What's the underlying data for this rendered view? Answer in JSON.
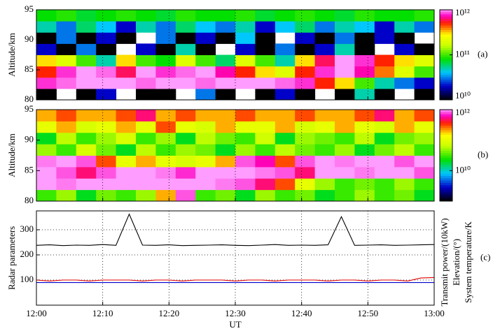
{
  "chart_data": [
    {
      "type": "heatmap",
      "panel_label": "(a)",
      "y_label": "Altitude/km",
      "ylim": [
        80,
        95
      ],
      "yticks": [
        80,
        85,
        90,
        95
      ],
      "rows": [
        [
          10000000000.0,
          null,
          10000000000.0,
          20000000000.0,
          null,
          10000000000.0,
          10000000000.0,
          null,
          30000000000.0,
          10000000000.0,
          null,
          10000000000.0,
          20000000000.0,
          10000000000.0,
          null,
          10000000000.0,
          50000000000.0,
          10000000000.0,
          null,
          10000000000.0
        ],
        [
          800000000000.0,
          900000000000.0,
          1000000000000.0,
          1000000000000.0,
          1000000000000.0,
          900000000000.0,
          1000000000000.0,
          1000000000000.0,
          900000000000.0,
          1000000000000.0,
          1000000000000.0,
          1000000000000.0,
          900000000000.0,
          800000000000.0,
          500000000000.0,
          300000000000.0,
          100000000000.0,
          50000000000.0,
          30000000000.0,
          20000000000.0
        ],
        [
          500000000000.0,
          800000000000.0,
          1000000000000.0,
          900000000000.0,
          600000000000.0,
          1000000000000.0,
          800000000000.0,
          900000000000.0,
          1000000000000.0,
          700000000000.0,
          500000000000.0,
          300000000000.0,
          200000000000.0,
          500000000000.0,
          800000000000.0,
          1000000000000.0,
          700000000000.0,
          400000000000.0,
          200000000000.0,
          100000000000.0
        ],
        [
          300000000000.0,
          200000000000.0,
          100000000000.0,
          50000000000.0,
          300000000000.0,
          100000000000.0,
          80000000000.0,
          200000000000.0,
          100000000000.0,
          60000000000.0,
          200000000000.0,
          100000000000.0,
          50000000000.0,
          300000000000.0,
          600000000000.0,
          1000000000000.0,
          800000000000.0,
          500000000000.0,
          300000000000.0,
          200000000000.0
        ],
        [
          20000000000.0,
          10000000000.0,
          30000000000.0,
          10000000000.0,
          null,
          20000000000.0,
          10000000000.0,
          50000000000.0,
          10000000000.0,
          null,
          20000000000.0,
          10000000000.0,
          30000000000.0,
          10000000000.0,
          20000000000.0,
          50000000000.0,
          10000000000.0,
          null,
          20000000000.0,
          10000000000.0
        ],
        [
          10000000000.0,
          30000000000.0,
          10000000000.0,
          20000000000.0,
          10000000000.0,
          null,
          30000000000.0,
          10000000000.0,
          20000000000.0,
          10000000000.0,
          40000000000.0,
          10000000000.0,
          null,
          20000000000.0,
          10000000000.0,
          30000000000.0,
          10000000000.0,
          20000000000.0,
          10000000000.0,
          null
        ],
        [
          50000000000.0,
          30000000000.0,
          60000000000.0,
          40000000000.0,
          20000000000.0,
          50000000000.0,
          30000000000.0,
          60000000000.0,
          40000000000.0,
          30000000000.0,
          50000000000.0,
          20000000000.0,
          40000000000.0,
          60000000000.0,
          30000000000.0,
          50000000000.0,
          40000000000.0,
          20000000000.0,
          50000000000.0,
          30000000000.0
        ],
        [
          80000000000.0,
          90000000000.0,
          70000000000.0,
          80000000000.0,
          90000000000.0,
          80000000000.0,
          70000000000.0,
          90000000000.0,
          80000000000.0,
          80000000000.0,
          90000000000.0,
          70000000000.0,
          80000000000.0,
          90000000000.0,
          80000000000.0,
          70000000000.0,
          90000000000.0,
          80000000000.0,
          80000000000.0,
          90000000000.0
        ]
      ],
      "colorbar": {
        "log": true,
        "lim": [
          10000000000.0,
          1000000000000.0
        ],
        "ticks": [
          {
            "value": 10000000000.0,
            "label": "10¹⁰"
          },
          {
            "value": 100000000000.0,
            "label": "10¹¹"
          },
          {
            "value": 1000000000000.0,
            "label": "10¹²"
          }
        ]
      }
    },
    {
      "type": "heatmap",
      "panel_label": "(b)",
      "y_label": "Altitude/km",
      "ylim": [
        80,
        95
      ],
      "yticks": [
        80,
        85,
        90,
        95
      ],
      "rows": [
        [
          30000000000.0,
          50000000000.0,
          20000000000.0,
          40000000000.0,
          30000000000.0,
          50000000000.0,
          200000000000.0,
          800000000000.0,
          30000000000.0,
          40000000000.0,
          20000000000.0,
          50000000000.0,
          30000000000.0,
          40000000000.0,
          20000000000.0,
          30000000000.0,
          50000000000.0,
          30000000000.0,
          40000000000.0,
          20000000000.0
        ],
        [
          1000000000000.0,
          900000000000.0,
          1000000000000.0,
          1000000000000.0,
          1000000000000.0,
          1000000000000.0,
          1000000000000.0,
          1000000000000.0,
          1000000000000.0,
          900000000000.0,
          800000000000.0,
          500000000000.0,
          300000000000.0,
          100000000000.0,
          50000000000.0,
          30000000000.0,
          40000000000.0,
          30000000000.0,
          50000000000.0,
          30000000000.0
        ],
        [
          1000000000000.0,
          800000000000.0,
          500000000000.0,
          800000000000.0,
          1000000000000.0,
          1000000000000.0,
          900000000000.0,
          700000000000.0,
          1000000000000.0,
          1000000000000.0,
          1000000000000.0,
          900000000000.0,
          800000000000.0,
          500000000000.0,
          1000000000000.0,
          1000000000000.0,
          900000000000.0,
          1000000000000.0,
          1000000000000.0,
          800000000000.0
        ],
        [
          900000000000.0,
          1000000000000.0,
          800000000000.0,
          300000000000.0,
          100000000000.0,
          200000000000.0,
          100000000000.0,
          80000000000.0,
          100000000000.0,
          200000000000.0,
          800000000000.0,
          600000000000.0,
          300000000000.0,
          800000000000.0,
          1000000000000.0,
          900000000000.0,
          1000000000000.0,
          1000000000000.0,
          800000000000.0,
          1000000000000.0
        ],
        [
          50000000000.0,
          30000000000.0,
          80000000000.0,
          40000000000.0,
          20000000000.0,
          60000000000.0,
          30000000000.0,
          50000000000.0,
          40000000000.0,
          20000000000.0,
          50000000000.0,
          30000000000.0,
          60000000000.0,
          40000000000.0,
          30000000000.0,
          50000000000.0,
          20000000000.0,
          40000000000.0,
          60000000000.0,
          30000000000.0
        ],
        [
          20000000000.0,
          60000000000.0,
          30000000000.0,
          50000000000.0,
          80000000000.0,
          30000000000.0,
          50000000000.0,
          20000000000.0,
          60000000000.0,
          40000000000.0,
          30000000000.0,
          70000000000.0,
          20000000000.0,
          50000000000.0,
          40000000000.0,
          30000000000.0,
          60000000000.0,
          20000000000.0,
          40000000000.0,
          50000000000.0
        ],
        [
          100000000000.0,
          200000000000.0,
          80000000000.0,
          100000000000.0,
          200000000000.0,
          100000000000.0,
          300000000000.0,
          100000000000.0,
          80000000000.0,
          200000000000.0,
          100000000000.0,
          100000000000.0,
          200000000000.0,
          80000000000.0,
          100000000000.0,
          200000000000.0,
          100000000000.0,
          80000000000.0,
          200000000000.0,
          100000000000.0
        ],
        [
          200000000000.0,
          300000000000.0,
          200000000000.0,
          200000000000.0,
          300000000000.0,
          500000000000.0,
          200000000000.0,
          300000000000.0,
          200000000000.0,
          200000000000.0,
          300000000000.0,
          200000000000.0,
          200000000000.0,
          300000000000.0,
          200000000000.0,
          200000000000.0,
          300000000000.0,
          500000000000.0,
          200000000000.0,
          300000000000.0
        ]
      ],
      "colorbar": {
        "log": true,
        "lim": [
          1000000000.0,
          1000000000000.0
        ],
        "ticks": [
          {
            "value": 10000000000.0,
            "label": "10¹⁰"
          },
          {
            "value": 1000000000000.0,
            "label": "10¹²"
          }
        ]
      }
    },
    {
      "type": "line",
      "panel_label": "(c)",
      "x_label": "UT",
      "y_label": "Radar parameters",
      "x": [
        "12:00",
        "12:02",
        "12:04",
        "12:06",
        "12:08",
        "12:10",
        "12:12",
        "12:14",
        "12:16",
        "12:18",
        "12:20",
        "12:22",
        "12:24",
        "12:26",
        "12:28",
        "12:30",
        "12:32",
        "12:34",
        "12:36",
        "12:38",
        "12:40",
        "12:42",
        "12:44",
        "12:46",
        "12:48",
        "12:50",
        "12:52",
        "12:54",
        "12:56",
        "12:58",
        "13:00"
      ],
      "xlim": [
        "12:00",
        "13:00"
      ],
      "xticks": [
        "12:00",
        "12:10",
        "12:20",
        "12:30",
        "12:40",
        "12:50",
        "13:00"
      ],
      "ylim": [
        0,
        375
      ],
      "yticks": [
        100,
        200,
        300
      ],
      "grid": true,
      "series": [
        {
          "name": "System temperature/K",
          "color": "#000000",
          "values": [
            238,
            240,
            237,
            239,
            238,
            241,
            238,
            362,
            239,
            238,
            240,
            237,
            238,
            239,
            240,
            238,
            237,
            239,
            241,
            238,
            239,
            238,
            240,
            352,
            238,
            239,
            240,
            238,
            239,
            240,
            241
          ]
        },
        {
          "name": "Elevation/(°)",
          "color": "#e00000",
          "values": [
            100,
            96,
            100,
            100,
            96,
            100,
            100,
            100,
            96,
            100,
            100,
            96,
            100,
            100,
            100,
            96,
            100,
            100,
            96,
            100,
            100,
            100,
            96,
            100,
            100,
            96,
            100,
            100,
            96,
            108,
            110
          ]
        },
        {
          "name": "Transmit power/(10kW)",
          "color": "#0000cc",
          "values": [
            90,
            90,
            90,
            90,
            90,
            90,
            90,
            90,
            90,
            90,
            90,
            90,
            90,
            90,
            90,
            90,
            90,
            90,
            90,
            90,
            90,
            90,
            90,
            90,
            90,
            90,
            90,
            90,
            90,
            90,
            90
          ]
        }
      ]
    }
  ]
}
